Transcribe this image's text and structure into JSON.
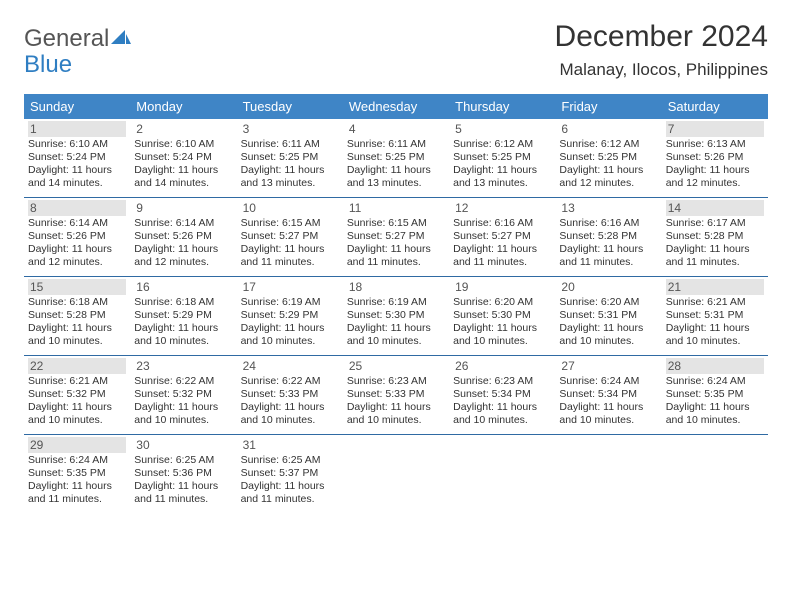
{
  "logo": {
    "line1": "General",
    "line2": "Blue"
  },
  "title": "December 2024",
  "location": "Malanay, Ilocos, Philippines",
  "colors": {
    "header_bg": "#3f85c6",
    "header_text": "#ffffff",
    "row_border": "#2f6aa3",
    "shade_bg": "#e4e4e4",
    "logo_gray": "#555555",
    "logo_blue": "#2f7ec2"
  },
  "dayheads": [
    "Sunday",
    "Monday",
    "Tuesday",
    "Wednesday",
    "Thursday",
    "Friday",
    "Saturday"
  ],
  "weeks": [
    [
      {
        "n": "1",
        "shade": true,
        "sr": "6:10 AM",
        "ss": "5:24 PM",
        "dl": "11 hours and 14 minutes."
      },
      {
        "n": "2",
        "shade": false,
        "sr": "6:10 AM",
        "ss": "5:24 PM",
        "dl": "11 hours and 14 minutes."
      },
      {
        "n": "3",
        "shade": false,
        "sr": "6:11 AM",
        "ss": "5:25 PM",
        "dl": "11 hours and 13 minutes."
      },
      {
        "n": "4",
        "shade": false,
        "sr": "6:11 AM",
        "ss": "5:25 PM",
        "dl": "11 hours and 13 minutes."
      },
      {
        "n": "5",
        "shade": false,
        "sr": "6:12 AM",
        "ss": "5:25 PM",
        "dl": "11 hours and 13 minutes."
      },
      {
        "n": "6",
        "shade": false,
        "sr": "6:12 AM",
        "ss": "5:25 PM",
        "dl": "11 hours and 12 minutes."
      },
      {
        "n": "7",
        "shade": true,
        "sr": "6:13 AM",
        "ss": "5:26 PM",
        "dl": "11 hours and 12 minutes."
      }
    ],
    [
      {
        "n": "8",
        "shade": true,
        "sr": "6:14 AM",
        "ss": "5:26 PM",
        "dl": "11 hours and 12 minutes."
      },
      {
        "n": "9",
        "shade": false,
        "sr": "6:14 AM",
        "ss": "5:26 PM",
        "dl": "11 hours and 12 minutes."
      },
      {
        "n": "10",
        "shade": false,
        "sr": "6:15 AM",
        "ss": "5:27 PM",
        "dl": "11 hours and 11 minutes."
      },
      {
        "n": "11",
        "shade": false,
        "sr": "6:15 AM",
        "ss": "5:27 PM",
        "dl": "11 hours and 11 minutes."
      },
      {
        "n": "12",
        "shade": false,
        "sr": "6:16 AM",
        "ss": "5:27 PM",
        "dl": "11 hours and 11 minutes."
      },
      {
        "n": "13",
        "shade": false,
        "sr": "6:16 AM",
        "ss": "5:28 PM",
        "dl": "11 hours and 11 minutes."
      },
      {
        "n": "14",
        "shade": true,
        "sr": "6:17 AM",
        "ss": "5:28 PM",
        "dl": "11 hours and 11 minutes."
      }
    ],
    [
      {
        "n": "15",
        "shade": true,
        "sr": "6:18 AM",
        "ss": "5:28 PM",
        "dl": "11 hours and 10 minutes."
      },
      {
        "n": "16",
        "shade": false,
        "sr": "6:18 AM",
        "ss": "5:29 PM",
        "dl": "11 hours and 10 minutes."
      },
      {
        "n": "17",
        "shade": false,
        "sr": "6:19 AM",
        "ss": "5:29 PM",
        "dl": "11 hours and 10 minutes."
      },
      {
        "n": "18",
        "shade": false,
        "sr": "6:19 AM",
        "ss": "5:30 PM",
        "dl": "11 hours and 10 minutes."
      },
      {
        "n": "19",
        "shade": false,
        "sr": "6:20 AM",
        "ss": "5:30 PM",
        "dl": "11 hours and 10 minutes."
      },
      {
        "n": "20",
        "shade": false,
        "sr": "6:20 AM",
        "ss": "5:31 PM",
        "dl": "11 hours and 10 minutes."
      },
      {
        "n": "21",
        "shade": true,
        "sr": "6:21 AM",
        "ss": "5:31 PM",
        "dl": "11 hours and 10 minutes."
      }
    ],
    [
      {
        "n": "22",
        "shade": true,
        "sr": "6:21 AM",
        "ss": "5:32 PM",
        "dl": "11 hours and 10 minutes."
      },
      {
        "n": "23",
        "shade": false,
        "sr": "6:22 AM",
        "ss": "5:32 PM",
        "dl": "11 hours and 10 minutes."
      },
      {
        "n": "24",
        "shade": false,
        "sr": "6:22 AM",
        "ss": "5:33 PM",
        "dl": "11 hours and 10 minutes."
      },
      {
        "n": "25",
        "shade": false,
        "sr": "6:23 AM",
        "ss": "5:33 PM",
        "dl": "11 hours and 10 minutes."
      },
      {
        "n": "26",
        "shade": false,
        "sr": "6:23 AM",
        "ss": "5:34 PM",
        "dl": "11 hours and 10 minutes."
      },
      {
        "n": "27",
        "shade": false,
        "sr": "6:24 AM",
        "ss": "5:34 PM",
        "dl": "11 hours and 10 minutes."
      },
      {
        "n": "28",
        "shade": true,
        "sr": "6:24 AM",
        "ss": "5:35 PM",
        "dl": "11 hours and 10 minutes."
      }
    ],
    [
      {
        "n": "29",
        "shade": true,
        "sr": "6:24 AM",
        "ss": "5:35 PM",
        "dl": "11 hours and 11 minutes."
      },
      {
        "n": "30",
        "shade": false,
        "sr": "6:25 AM",
        "ss": "5:36 PM",
        "dl": "11 hours and 11 minutes."
      },
      {
        "n": "31",
        "shade": false,
        "sr": "6:25 AM",
        "ss": "5:37 PM",
        "dl": "11 hours and 11 minutes."
      },
      null,
      null,
      null,
      null
    ]
  ],
  "labels": {
    "sunrise": "Sunrise:",
    "sunset": "Sunset:",
    "daylight": "Daylight:"
  }
}
